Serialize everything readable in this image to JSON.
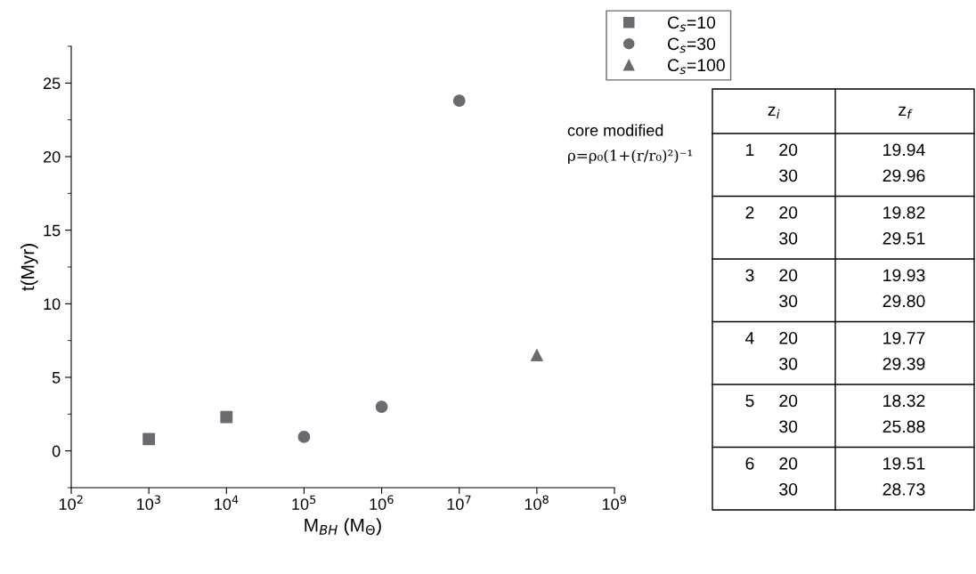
{
  "chart_data": [
    {
      "type": "scatter",
      "xlabel": "M$_{BH}$ (M$_{Θ}$)",
      "ylabel": "t(Myr)",
      "log": "x",
      "xlim": [
        100,
        1000000000
      ],
      "xticks": [
        {
          "value": 100,
          "label": "10$^{2}$"
        },
        {
          "value": 1000,
          "label": "10$^{3}$"
        },
        {
          "value": 10000,
          "label": "10$^{4}$"
        },
        {
          "value": 100000,
          "label": "10$^{5}$"
        },
        {
          "value": 1000000,
          "label": "10$^{6}$"
        },
        {
          "value": 10000000,
          "label": "10$^{7}$"
        },
        {
          "value": 100000000,
          "label": "10$^{8}$"
        },
        {
          "value": 1000000000,
          "label": "10$^{9}$"
        }
      ],
      "ylim": [
        -2.5,
        27.5
      ],
      "yticks": [
        0,
        5,
        10,
        15,
        20,
        25
      ],
      "grid": false,
      "legend": "top right",
      "series": [
        {
          "name": "C$_{s}$=10",
          "color": "#6b6b6e",
          "marker": "square",
          "x": [
            1000,
            10000
          ],
          "values": [
            0.8,
            2.3
          ]
        },
        {
          "name": "C$_{s}$=30",
          "color": "#6b6b6e",
          "marker": "circle",
          "x": [
            100000,
            1000000,
            10000000
          ],
          "values": [
            0.95,
            3.0,
            23.8
          ]
        },
        {
          "name": "C$_{s}$=100",
          "color": "#6b6b6e",
          "marker": "triangle",
          "x": [
            100000000
          ],
          "values": [
            6.5
          ]
        }
      ],
      "annotations": [
        "core modified",
        "ρ=ρ₀(1+(r/r₀)²)⁻¹"
      ]
    },
    {
      "type": "other",
      "annotations": [
        "z$_{i}$",
        "z$_{f}$",
        "1     20",
        "19.94",
        "30",
        "29.96",
        "2     20",
        "19.82",
        "30",
        "29.51",
        "3     20",
        "19.93",
        "30",
        "29.80",
        "4     20",
        "19.77",
        "30",
        "29.39",
        "5     20",
        "18.32",
        "30",
        "25.88",
        "6     20",
        "19.51",
        "30",
        "28.73"
      ]
    }
  ]
}
